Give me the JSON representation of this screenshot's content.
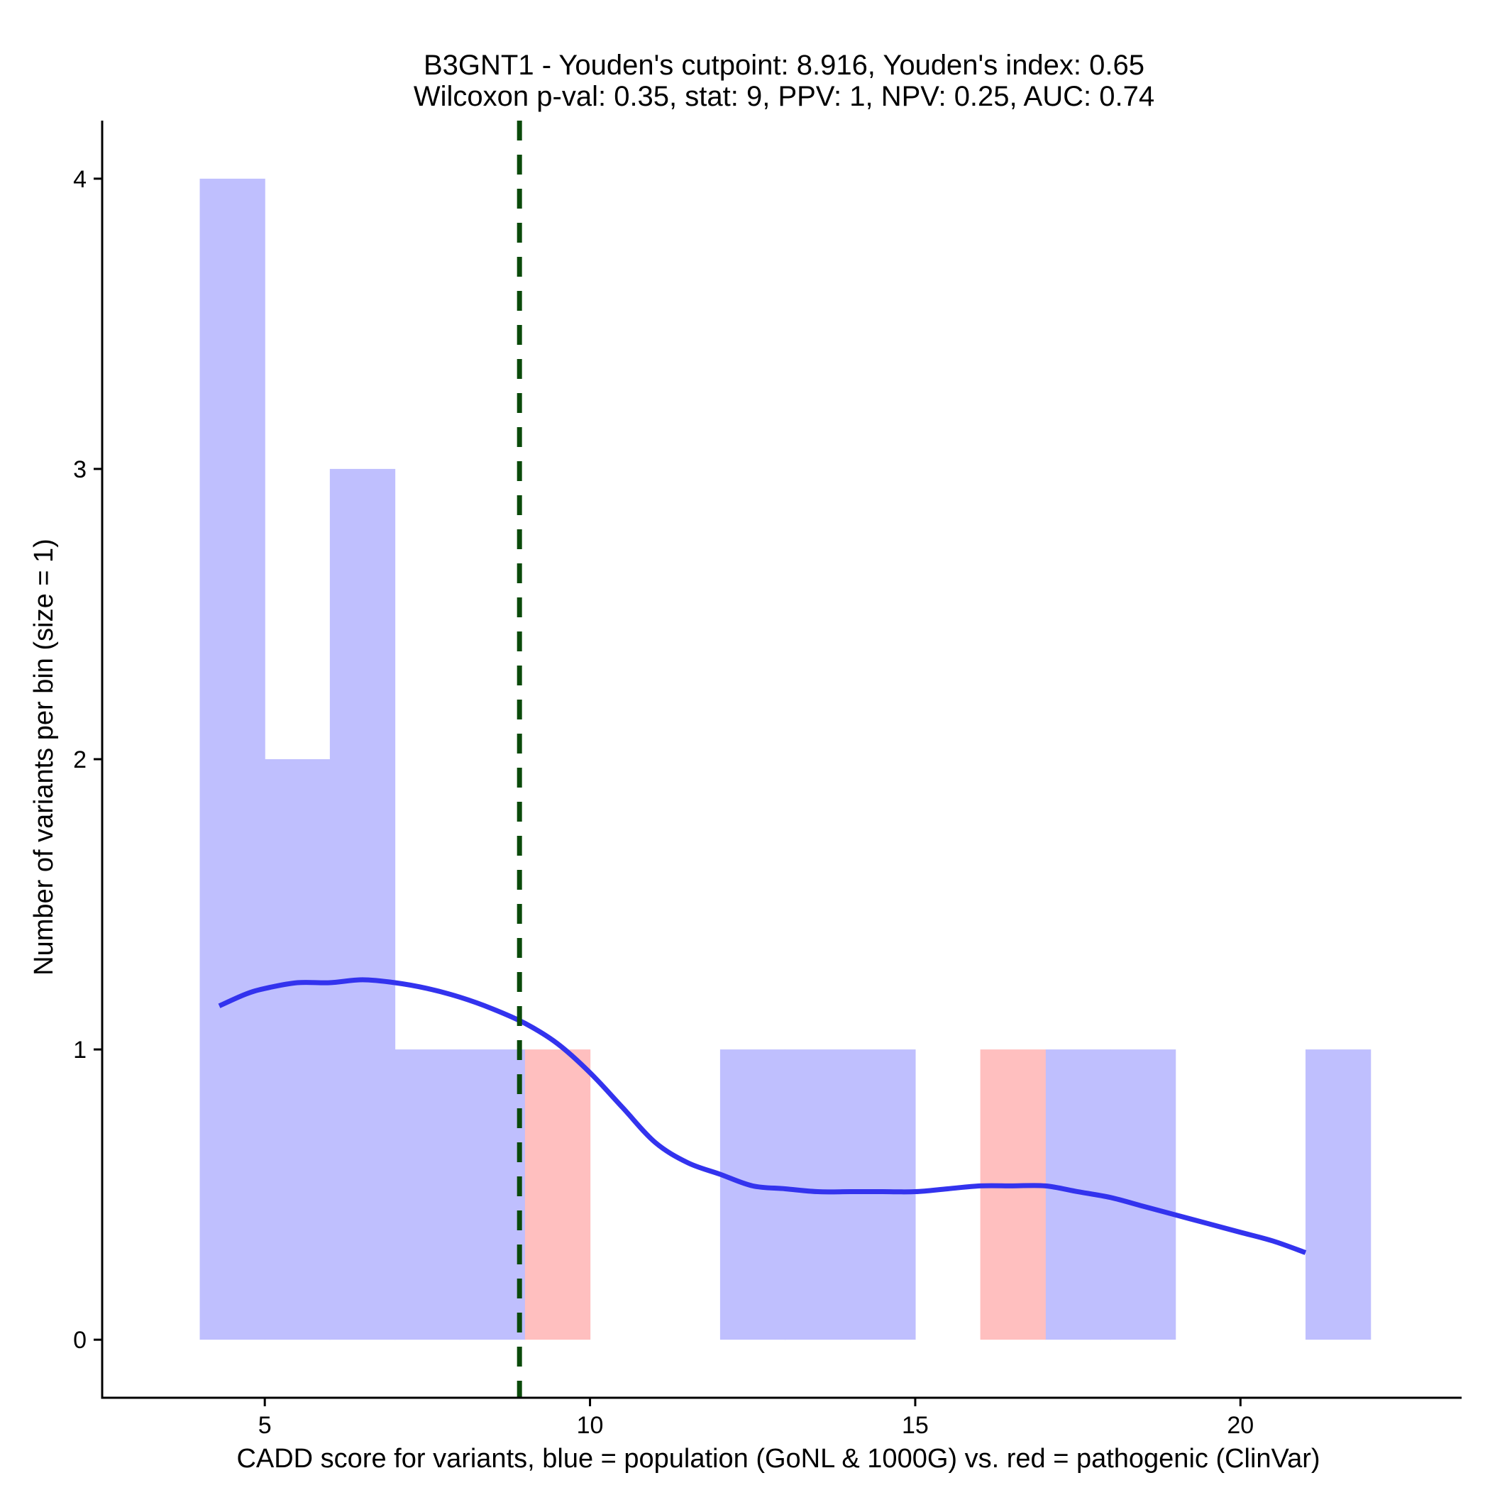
{
  "chart_data": {
    "type": "bar",
    "title": "B3GNT1 - Youden's cutpoint: 8.916, Youden's index: 0.65",
    "subtitle": "Wilcoxon p-val: 0.35, stat: 9, PPV: 1, NPV: 0.25, AUC: 0.74",
    "xlabel": "CADD score for variants, blue = population (GoNL & 1000G) vs. red = pathogenic (ClinVar)",
    "ylabel": "Number of variants per bin (size = 1)",
    "xlim": [
      2.5,
      23.4
    ],
    "ylim": [
      -0.2,
      4.2
    ],
    "x_ticks": [
      5,
      10,
      15,
      20
    ],
    "y_ticks": [
      0,
      1,
      2,
      3,
      4
    ],
    "bin_width": 1,
    "colors": {
      "population": "#bfbffe",
      "pathogenic": "#ffbfbf",
      "density_line": "#3333ee",
      "cutpoint_line": "#0a4a0a",
      "axis": "#000000"
    },
    "series": [
      {
        "name": "population (GoNL & 1000G)",
        "color_key": "population",
        "bins": [
          {
            "start": 4,
            "end": 5,
            "count": 4
          },
          {
            "start": 5,
            "end": 6,
            "count": 2
          },
          {
            "start": 6,
            "end": 7,
            "count": 3
          },
          {
            "start": 7,
            "end": 8,
            "count": 1
          },
          {
            "start": 8,
            "end": 9,
            "count": 1
          },
          {
            "start": 12,
            "end": 13,
            "count": 1
          },
          {
            "start": 13,
            "end": 14,
            "count": 1
          },
          {
            "start": 14,
            "end": 15,
            "count": 1
          },
          {
            "start": 17,
            "end": 18,
            "count": 1
          },
          {
            "start": 18,
            "end": 19,
            "count": 1
          },
          {
            "start": 21,
            "end": 22,
            "count": 1
          }
        ]
      },
      {
        "name": "pathogenic (ClinVar)",
        "color_key": "pathogenic",
        "bins": [
          {
            "start": 9,
            "end": 10,
            "count": 1
          },
          {
            "start": 16,
            "end": 17,
            "count": 1
          }
        ]
      }
    ],
    "density_curve": {
      "name": "population density",
      "x": [
        4.3,
        4.7,
        5.0,
        5.5,
        6.0,
        6.5,
        7.0,
        7.5,
        8.0,
        8.5,
        9.0,
        9.5,
        10.0,
        10.5,
        11.0,
        11.5,
        12.0,
        12.5,
        13.0,
        13.5,
        14.0,
        14.5,
        15.0,
        15.5,
        16.0,
        16.5,
        17.0,
        17.5,
        18.0,
        18.5,
        19.0,
        19.5,
        20.0,
        20.5,
        21.0
      ],
      "y": [
        1.15,
        1.19,
        1.21,
        1.23,
        1.23,
        1.24,
        1.23,
        1.21,
        1.18,
        1.14,
        1.09,
        1.02,
        0.92,
        0.8,
        0.68,
        0.61,
        0.57,
        0.53,
        0.52,
        0.51,
        0.51,
        0.51,
        0.51,
        0.52,
        0.53,
        0.53,
        0.53,
        0.51,
        0.49,
        0.46,
        0.43,
        0.4,
        0.37,
        0.34,
        0.3
      ]
    },
    "cutpoint": {
      "name": "Youden's cutpoint",
      "x": 8.916
    }
  }
}
